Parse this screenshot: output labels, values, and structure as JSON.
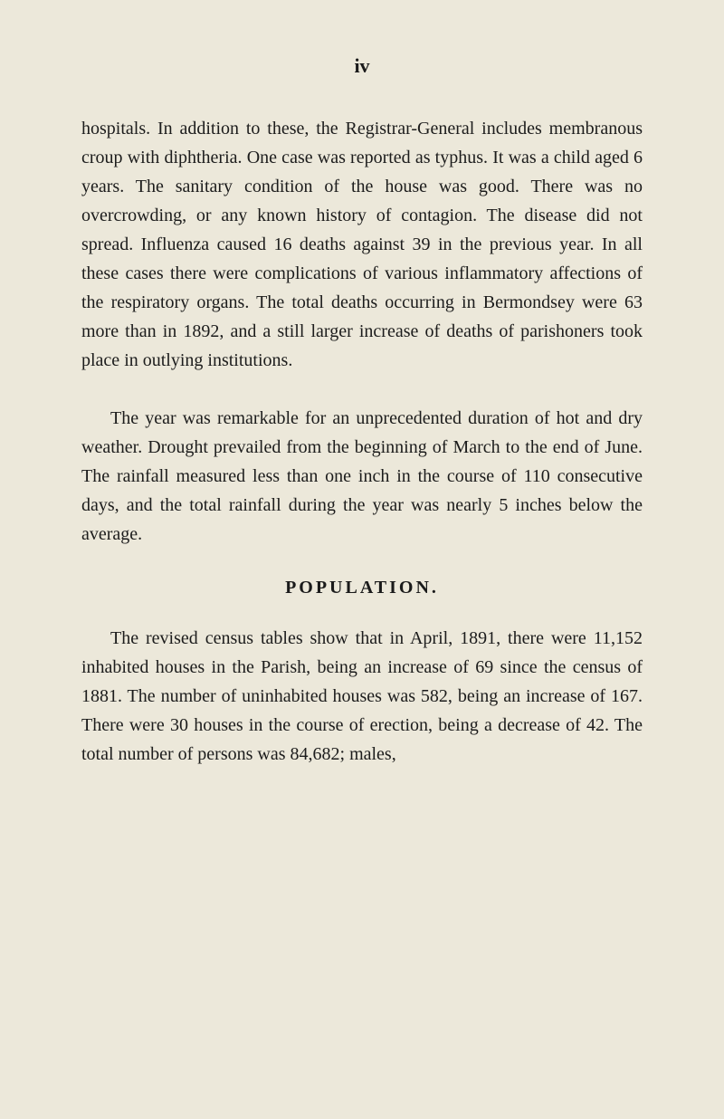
{
  "page": {
    "number": "iv",
    "background_color": "#ece8da",
    "text_color": "#1c1c1c"
  },
  "paragraphs": {
    "p1": "hospitals. In addition to these, the Registrar-General includes membranous croup with diphtheria. One case was reported as typhus. It was a child aged 6 years. The sanitary condition of the house was good. There was no overcrowding, or any known history of contagion. The disease did not spread. Influenza caused 16 deaths against 39 in the previous year. In all these cases there were complications of various inflammatory affections of the respiratory organs. The total deaths occurring in Bermondsey were 63 more than in 1892, and a still larger increase of deaths of parishoners took place in outlying institutions.",
    "p2": "The year was remarkable for an unprecedented duration of hot and dry weather. Drought prevailed from the beginning of March to the end of June. The rainfall measured less than one inch in the course of 110 consecutive days, and the total rainfall during the year was nearly 5 inches below the average.",
    "p3": "The revised census tables show that in April, 1891, there were 11,152 inhabited houses in the Parish, being an increase of 69 since the census of 1881. The number of uninhabited houses was 582, being an increase of 167. There were 30 houses in the course of erection, being a decrease of 42. The total number of persons was 84,682; males,"
  },
  "headings": {
    "population": "POPULATION."
  },
  "typography": {
    "body_fontsize": 20,
    "heading_fontsize": 20,
    "page_number_fontsize": 22,
    "line_height": 1.6,
    "font_family": "Georgia, serif"
  }
}
